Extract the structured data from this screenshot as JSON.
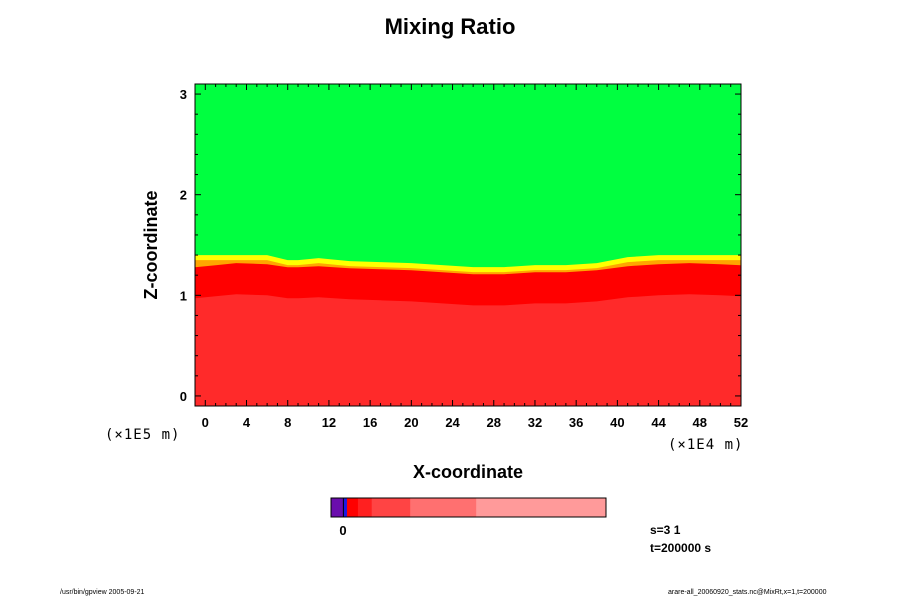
{
  "chart_data": {
    "type": "heatmap",
    "title": "Mixing Ratio",
    "xlabel": "X-coordinate",
    "ylabel": "Z-coordinate",
    "x_scale_note": "(×1E4 m)",
    "z_scale_note": "(×1E5 m)",
    "xlim": [
      -1,
      52
    ],
    "ylim": [
      -0.1,
      3.1
    ],
    "x_ticks": [
      0,
      4,
      8,
      12,
      16,
      20,
      24,
      28,
      32,
      36,
      40,
      44,
      48,
      52
    ],
    "y_ticks": [
      0,
      1,
      2,
      3
    ],
    "boundary_profile": {
      "x": [
        -1,
        1,
        3,
        6,
        8,
        9,
        11,
        14,
        17,
        20,
        23,
        26,
        29,
        32,
        35,
        38,
        41,
        44,
        47,
        50,
        52
      ],
      "top_z": [
        1.4,
        1.4,
        1.4,
        1.4,
        1.35,
        1.35,
        1.37,
        1.34,
        1.33,
        1.32,
        1.3,
        1.28,
        1.28,
        1.3,
        1.3,
        1.32,
        1.38,
        1.4,
        1.4,
        1.4,
        1.4
      ],
      "red_z": [
        1.22,
        1.24,
        1.26,
        1.25,
        1.22,
        1.22,
        1.23,
        1.21,
        1.2,
        1.19,
        1.17,
        1.15,
        1.15,
        1.17,
        1.17,
        1.19,
        1.23,
        1.25,
        1.26,
        1.25,
        1.24
      ]
    },
    "regions": [
      {
        "name": "upper",
        "color": "#00ff40"
      },
      {
        "name": "transition-yellow",
        "color": "#ffff00"
      },
      {
        "name": "transition-orange",
        "color": "#ffa500"
      },
      {
        "name": "lower",
        "color": "#ff2a2a"
      },
      {
        "name": "lower-dark",
        "color": "#ff0000"
      }
    ],
    "colorbar": {
      "segments": [
        {
          "color": "#6a0dad",
          "width": 0.045
        },
        {
          "color": "#1a1ae6",
          "width": 0.013
        },
        {
          "color": "#ff0000",
          "width": 0.04
        },
        {
          "color": "#ff2020",
          "width": 0.05
        },
        {
          "color": "#ff4444",
          "width": 0.14
        },
        {
          "color": "#ff7070",
          "width": 0.24
        },
        {
          "color": "#ff9a9a",
          "width": 0.472
        }
      ],
      "tick_label": "0",
      "tick_fraction": 0.045
    }
  },
  "info": {
    "step_label": "s=3 1",
    "time_label": "t=200000 s"
  },
  "footer": {
    "left": "/usr/bin/gpview 2005-09-21",
    "right": "arare-all_20060920_stats.nc@MixRt,x=1,t=200000"
  }
}
